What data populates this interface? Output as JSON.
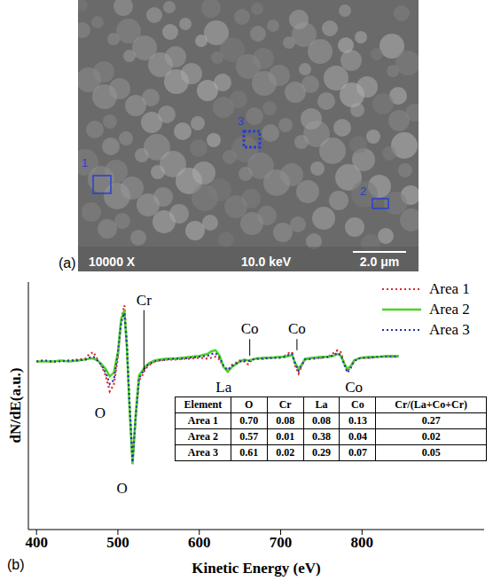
{
  "panel_a": {
    "label": "(a)",
    "magnification": "10000 X",
    "voltage": "10.0 keV",
    "scale_bar": "2.0 μm",
    "areas": [
      "1",
      "2",
      "3"
    ]
  },
  "chart_data": {
    "type": "line",
    "panel": "(b)",
    "x_label": "Kinetic Energy (eV)",
    "y_label": "dN/dE(a.u.)",
    "x": [
      400,
      410,
      420,
      430,
      440,
      450,
      460,
      465,
      470,
      475,
      480,
      485,
      490,
      495,
      500,
      504,
      508,
      511,
      514,
      518,
      522,
      526,
      530,
      534,
      538,
      545,
      550,
      560,
      570,
      580,
      590,
      600,
      610,
      615,
      620,
      625,
      630,
      635,
      640,
      650,
      655,
      660,
      665,
      670,
      680,
      690,
      700,
      705,
      710,
      714,
      718,
      722,
      726,
      730,
      740,
      750,
      760,
      765,
      770,
      774,
      778,
      782,
      786,
      790,
      795,
      800,
      810,
      820,
      830,
      845
    ],
    "series": [
      {
        "name": "Area 1",
        "color": "#e0262a",
        "line_style": "dotted",
        "values": [
          0,
          0.1,
          -0.1,
          0.1,
          0,
          0.2,
          0.3,
          0.8,
          1.0,
          0.2,
          -0.5,
          -1.5,
          -3.2,
          -2.5,
          0.5,
          4.5,
          6.0,
          2.0,
          -4.0,
          -10.5,
          -6.0,
          -2.0,
          -1.5,
          -0.8,
          -0.4,
          0.0,
          0.1,
          0.2,
          0.2,
          0.3,
          0.3,
          0.4,
          0.3,
          0.4,
          0.5,
          0.2,
          -0.6,
          -1.0,
          -0.4,
          0.1,
          0.0,
          -0.3,
          0.2,
          0.3,
          0.3,
          0.4,
          0.5,
          0.6,
          0.9,
          1.0,
          -0.5,
          -1.3,
          -0.4,
          0.2,
          0.4,
          0.4,
          0.6,
          0.9,
          1.2,
          1.0,
          -0.2,
          -1.0,
          -0.6,
          0.0,
          0.3,
          0.4,
          0.4,
          0.5,
          0.5,
          0.5
        ]
      },
      {
        "name": "Area 2",
        "color": "#4cd426",
        "line_style": "solid",
        "values": [
          0,
          0,
          0,
          0.1,
          0,
          0.1,
          0.2,
          0.3,
          0.3,
          0.1,
          -0.3,
          -0.8,
          -1.6,
          -1.2,
          1.0,
          4.5,
          5.5,
          1.5,
          -4.5,
          -11.0,
          -5.5,
          -1.5,
          -1.0,
          -0.5,
          -0.2,
          0.1,
          0.2,
          0.3,
          0.3,
          0.4,
          0.5,
          0.6,
          0.8,
          1.1,
          1.2,
          0.6,
          -0.6,
          -1.1,
          -0.6,
          0.0,
          0.2,
          0.1,
          0.2,
          0.3,
          0.4,
          0.4,
          0.5,
          0.5,
          0.6,
          0.7,
          -0.2,
          -0.8,
          -0.3,
          0.3,
          0.4,
          0.5,
          0.5,
          0.6,
          0.8,
          0.6,
          -0.2,
          -0.8,
          -0.5,
          0.1,
          0.3,
          0.4,
          0.5,
          0.5,
          0.6,
          0.6
        ]
      },
      {
        "name": "Area 3",
        "color": "#2233aa",
        "line_style": "dotted",
        "values": [
          0,
          0.1,
          0,
          0,
          0.1,
          0.1,
          0.2,
          0.4,
          0.5,
          0.1,
          -0.4,
          -1.2,
          -2.4,
          -2.0,
          0.8,
          4.2,
          5.2,
          1.8,
          -4.0,
          -10.8,
          -5.8,
          -1.8,
          -1.2,
          -0.6,
          -0.3,
          0.0,
          0.1,
          0.2,
          0.3,
          0.3,
          0.4,
          0.5,
          0.6,
          0.8,
          0.9,
          0.4,
          -0.5,
          -0.9,
          -0.5,
          0.0,
          0.1,
          0.0,
          0.2,
          0.3,
          0.3,
          0.4,
          0.4,
          0.5,
          0.7,
          0.8,
          -0.3,
          -1.0,
          -0.4,
          0.2,
          0.3,
          0.4,
          0.5,
          0.7,
          0.9,
          0.7,
          -0.3,
          -1.2,
          -0.7,
          0.0,
          0.3,
          0.4,
          0.4,
          0.5,
          0.5,
          0.5
        ]
      }
    ],
    "xlim": [
      390,
      950
    ],
    "xticks": [
      400,
      500,
      600,
      700,
      800
    ],
    "ylim": [
      -18,
      8.5
    ],
    "yticks": [],
    "tick_labels": "x",
    "grid": false,
    "legend": "upper right",
    "annotations": [
      {
        "text": "O",
        "x": 478,
        "y": -5.5
      },
      {
        "text": "O",
        "x": 505,
        "y": -13.5
      },
      {
        "text": "Cr",
        "x": 532,
        "y": 5.5,
        "line_to": -1.0
      },
      {
        "text": "La",
        "x": 630,
        "y": -2.7
      },
      {
        "text": "Co",
        "x": 662,
        "y": 2.4,
        "line_to": 0.6
      },
      {
        "text": "Co",
        "x": 720,
        "y": 2.4,
        "line_to": 1.2
      },
      {
        "text": "Co",
        "x": 790,
        "y": -2.7
      }
    ],
    "table": {
      "header": [
        "Element",
        "O",
        "Cr",
        "La",
        "Co",
        "Cr/(La+Co+Cr)"
      ],
      "rows": [
        [
          "Area 1",
          "0.70",
          "0.08",
          "0.08",
          "0.13",
          "0.27"
        ],
        [
          "Area 2",
          "0.57",
          "0.01",
          "0.38",
          "0.04",
          "0.02"
        ],
        [
          "Area 3",
          "0.61",
          "0.02",
          "0.29",
          "0.07",
          "0.05"
        ]
      ]
    }
  }
}
